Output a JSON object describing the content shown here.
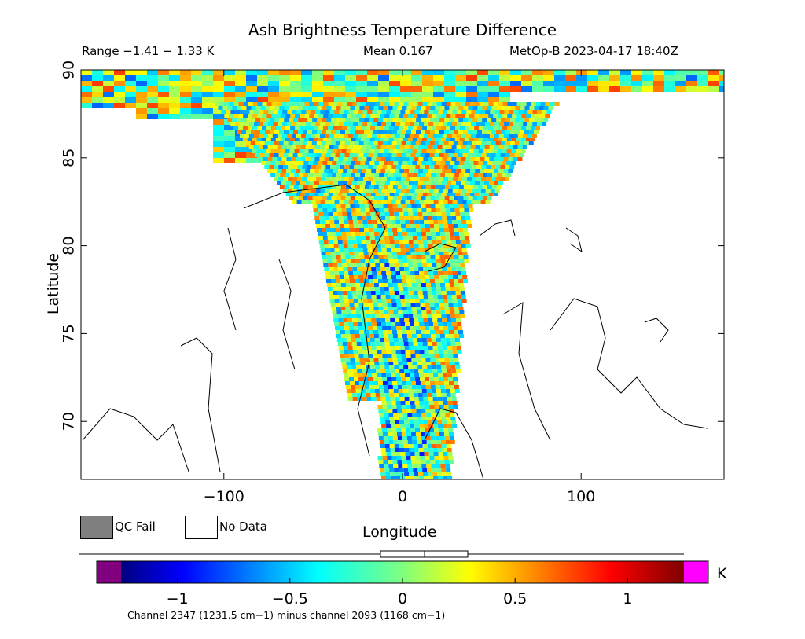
{
  "header": {
    "title": "Ash Brightness Temperature Difference",
    "range": "Range −1.41 − 1.33 K",
    "mean": "Mean 0.167",
    "satellite_time": "MetOp-B 2023-04-17 18:40Z"
  },
  "legend": {
    "qc_fail": "QC Fail",
    "no_data": "No Data",
    "qc_fail_color": "#7f7f7f",
    "no_data_color": "#ffffff"
  },
  "colorbar": {
    "unit": "K",
    "footnote": "Channel 2347 (1231.5 cm−1) minus channel 2093 (1168 cm−1)",
    "ticks": [
      "−1",
      "−0.5",
      "0",
      "0.5",
      "1"
    ],
    "min": -1.41,
    "max": 1.33,
    "mean": 0.167,
    "under_color": "#800080",
    "over_color": "#ff00ff"
  },
  "chart_data": {
    "type": "heatmap",
    "title": "Ash Brightness Temperature Difference",
    "xlabel": "Longitude",
    "ylabel": "Latitude",
    "xlim": [
      -180,
      180
    ],
    "ylim": [
      66.7,
      90
    ],
    "x_ticks": [
      "−100",
      "0",
      "100"
    ],
    "y_ticks": [
      "70",
      "75",
      "80",
      "85",
      "90"
    ],
    "value_range": [
      -1.41,
      1.33
    ],
    "mean": 0.167,
    "units": "K",
    "grid": false
  }
}
